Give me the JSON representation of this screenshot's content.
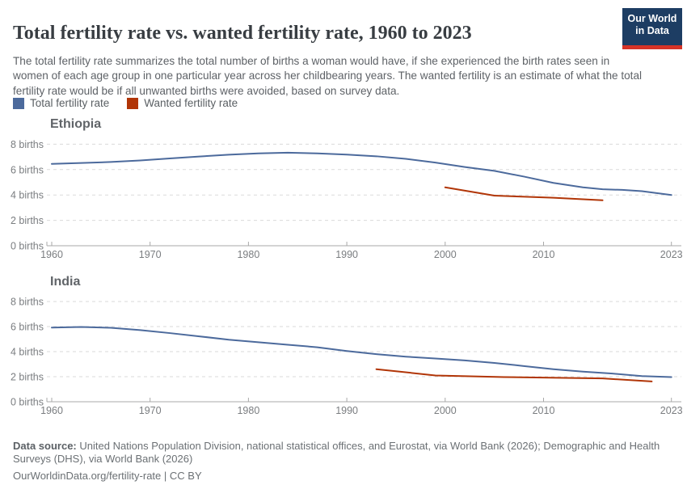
{
  "header": {
    "title": "Total fertility rate vs. wanted fertility rate, 1960 to 2023",
    "subtitle": "The total fertility rate summarizes the total number of births a woman would have, if she experienced the birth rates seen in women of each age group in one particular year across her childbearing years. The wanted fertility is an estimate of what the total fertility rate would be if all unwanted births were avoided, based on survey data.",
    "logo": {
      "line1": "Our World",
      "line2": "in Data"
    }
  },
  "legend": {
    "items": [
      {
        "label": "Total fertility rate",
        "color": "#4C6A9C"
      },
      {
        "label": "Wanted fertility rate",
        "color": "#B13507"
      }
    ]
  },
  "colors": {
    "total_line": "#4C6A9C",
    "wanted_line": "#B13507",
    "gridline": "#dadada",
    "axis": "#a9a9a9",
    "tick_text": "#7a7d80",
    "logo_bg": "#1d3d63",
    "logo_accent": "#d63327"
  },
  "chart_data": [
    {
      "type": "line",
      "title": "Ethiopia",
      "xlabel": "",
      "ylabel": "births",
      "xlim": [
        1960,
        2023
      ],
      "ylim": [
        0,
        8
      ],
      "grid": "dashed-horizontal",
      "xticks": [
        1960,
        1970,
        1980,
        1990,
        2000,
        2010,
        2023
      ],
      "yticks": [
        {
          "v": 0,
          "label": "0 births"
        },
        {
          "v": 2,
          "label": "2 births"
        },
        {
          "v": 4,
          "label": "4 births"
        },
        {
          "v": 6,
          "label": "6 births"
        },
        {
          "v": 8,
          "label": "8 births"
        }
      ],
      "series": [
        {
          "name": "Total fertility rate",
          "color": "#4C6A9C",
          "points": [
            [
              1960,
              6.45
            ],
            [
              1963,
              6.52
            ],
            [
              1966,
              6.6
            ],
            [
              1969,
              6.72
            ],
            [
              1972,
              6.88
            ],
            [
              1975,
              7.03
            ],
            [
              1978,
              7.17
            ],
            [
              1981,
              7.28
            ],
            [
              1984,
              7.33
            ],
            [
              1987,
              7.28
            ],
            [
              1990,
              7.18
            ],
            [
              1993,
              7.05
            ],
            [
              1996,
              6.85
            ],
            [
              1999,
              6.55
            ],
            [
              2002,
              6.2
            ],
            [
              2005,
              5.9
            ],
            [
              2008,
              5.45
            ],
            [
              2011,
              4.95
            ],
            [
              2014,
              4.6
            ],
            [
              2016,
              4.45
            ],
            [
              2018,
              4.4
            ],
            [
              2020,
              4.3
            ],
            [
              2023,
              4.0
            ]
          ]
        },
        {
          "name": "Wanted fertility rate",
          "color": "#B13507",
          "points": [
            [
              2000,
              4.6
            ],
            [
              2005,
              3.95
            ],
            [
              2011,
              3.78
            ],
            [
              2016,
              3.58
            ]
          ]
        }
      ]
    },
    {
      "type": "line",
      "title": "India",
      "xlabel": "",
      "ylabel": "births",
      "xlim": [
        1960,
        2023
      ],
      "ylim": [
        0,
        8
      ],
      "grid": "dashed-horizontal",
      "xticks": [
        1960,
        1970,
        1980,
        1990,
        2000,
        2010,
        2023
      ],
      "yticks": [
        {
          "v": 0,
          "label": "0 births"
        },
        {
          "v": 2,
          "label": "2 births"
        },
        {
          "v": 4,
          "label": "4 births"
        },
        {
          "v": 6,
          "label": "6 births"
        },
        {
          "v": 8,
          "label": "8 births"
        }
      ],
      "series": [
        {
          "name": "Total fertility rate",
          "color": "#4C6A9C",
          "points": [
            [
              1960,
              5.92
            ],
            [
              1963,
              5.97
            ],
            [
              1966,
              5.9
            ],
            [
              1969,
              5.72
            ],
            [
              1972,
              5.48
            ],
            [
              1975,
              5.22
            ],
            [
              1978,
              4.95
            ],
            [
              1981,
              4.75
            ],
            [
              1984,
              4.55
            ],
            [
              1987,
              4.35
            ],
            [
              1990,
              4.05
            ],
            [
              1993,
              3.8
            ],
            [
              1996,
              3.6
            ],
            [
              1999,
              3.45
            ],
            [
              2002,
              3.3
            ],
            [
              2005,
              3.1
            ],
            [
              2008,
              2.85
            ],
            [
              2011,
              2.6
            ],
            [
              2014,
              2.4
            ],
            [
              2017,
              2.25
            ],
            [
              2020,
              2.05
            ],
            [
              2023,
              1.97
            ]
          ]
        },
        {
          "name": "Wanted fertility rate",
          "color": "#B13507",
          "points": [
            [
              1993,
              2.6
            ],
            [
              1999,
              2.1
            ],
            [
              2006,
              1.97
            ],
            [
              2016,
              1.86
            ],
            [
              2021,
              1.62
            ]
          ]
        }
      ]
    }
  ],
  "footer": {
    "source_label": "Data source:",
    "source_text": "United Nations Population Division, national statistical offices, and Eurostat, via World Bank (2026); Demographic and Health Surveys (DHS), via World Bank (2026)",
    "link": "OurWorldinData.org/fertility-rate",
    "license": "| CC BY"
  }
}
